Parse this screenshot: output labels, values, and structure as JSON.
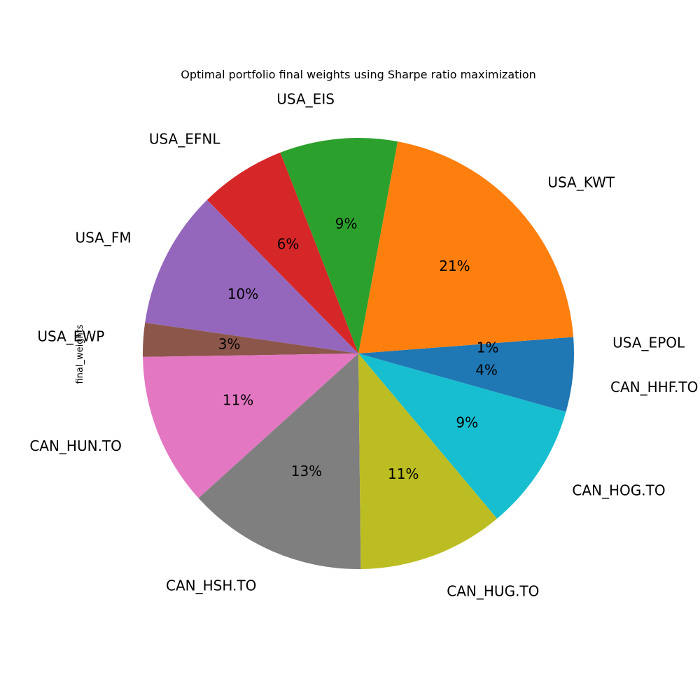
{
  "chart_data": {
    "type": "pie",
    "title": "Optimal portfolio final weights using Sharpe ratio maximization",
    "ylabel": "final_weights",
    "labels": [
      "USA_EPOL",
      "USA_KWT",
      "USA_EIS",
      "USA_EFNL",
      "USA_FM",
      "USA_EWP",
      "CAN_HUN.TO",
      "CAN_HSH.TO",
      "CAN_HUG.TO",
      "CAN_HOG.TO",
      "CAN_HHF.TO"
    ],
    "values": [
      1.2,
      20.6,
      8.7,
      6.4,
      10.2,
      2.5,
      11.3,
      13.3,
      10.8,
      9.4,
      4.3
    ],
    "pct_labels": [
      "1%",
      "21%",
      "9%",
      "6%",
      "10%",
      "3%",
      "11%",
      "13%",
      "11%",
      "9%",
      "4%"
    ],
    "colors": [
      "#1f77b4",
      "#ff7f0e",
      "#2ca02c",
      "#d62728",
      "#9467bd",
      "#8c564b",
      "#e377c2",
      "#7f7f7f",
      "#bcbd22",
      "#17becf",
      "#1f77b4"
    ],
    "start_angle_deg": 0,
    "direction": "counterclockwise"
  }
}
